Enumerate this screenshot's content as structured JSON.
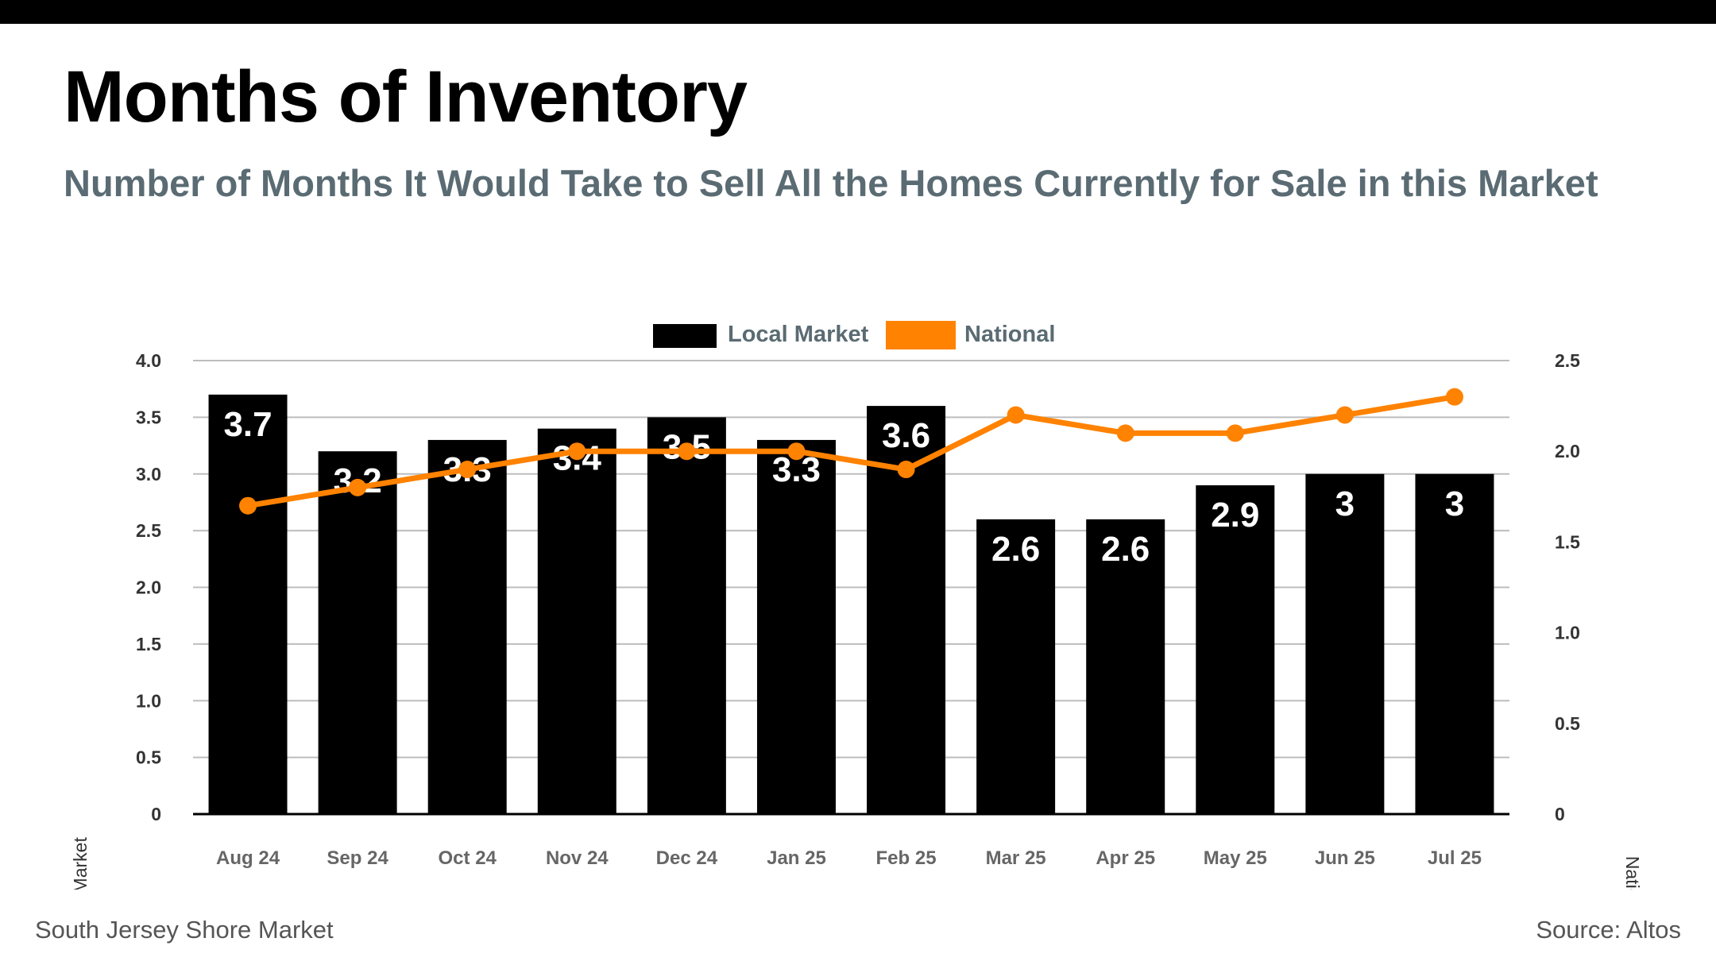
{
  "header": {
    "title": "Months of Inventory",
    "subtitle": "Number of Months It Would Take to Sell All the Homes Currently for Sale in this Market"
  },
  "footer": {
    "market": "South Jersey Shore Market",
    "source": "Source: Altos"
  },
  "colors": {
    "local": "#000000",
    "national": "#ff8200",
    "grid": "#bdbdbd",
    "subtitle": "#5a6b73"
  },
  "chart_data": {
    "type": "bar",
    "title": "Months of Inventory",
    "categories": [
      "Aug 24",
      "Sep 24",
      "Oct 24",
      "Nov 24",
      "Dec 24",
      "Jan 25",
      "Feb 25",
      "Mar 25",
      "Apr 25",
      "May 25",
      "Jun 25",
      "Jul 25"
    ],
    "series": [
      {
        "name": "Local Market",
        "type": "bar",
        "axis": "left",
        "values": [
          3.7,
          3.2,
          3.3,
          3.4,
          3.5,
          3.3,
          3.6,
          2.6,
          2.6,
          2.9,
          3,
          3
        ],
        "labels": [
          "3.7",
          "3.2",
          "3.3",
          "3.4",
          "3.5",
          "3.3",
          "3.6",
          "2.6",
          "2.6",
          "2.9",
          "3",
          "3"
        ]
      },
      {
        "name": "National",
        "type": "line",
        "axis": "right",
        "values": [
          1.7,
          1.8,
          1.9,
          2.0,
          2.0,
          2.0,
          1.9,
          2.2,
          2.1,
          2.1,
          2.2,
          2.3
        ]
      }
    ],
    "ylabel": "Local Market",
    "y2label": "National",
    "ylim": [
      0,
      4
    ],
    "y2lim": [
      0,
      2.5
    ],
    "yticks": [
      "0",
      "0.5",
      "1.0",
      "1.5",
      "2.0",
      "2.5",
      "3.0",
      "3.5",
      "4.0"
    ],
    "y2ticks": [
      "0",
      "0.5",
      "1.0",
      "1.5",
      "2.0",
      "2.5"
    ],
    "legend": [
      "Local Market",
      "National"
    ],
    "legend_position": "top-center",
    "grid": true
  }
}
